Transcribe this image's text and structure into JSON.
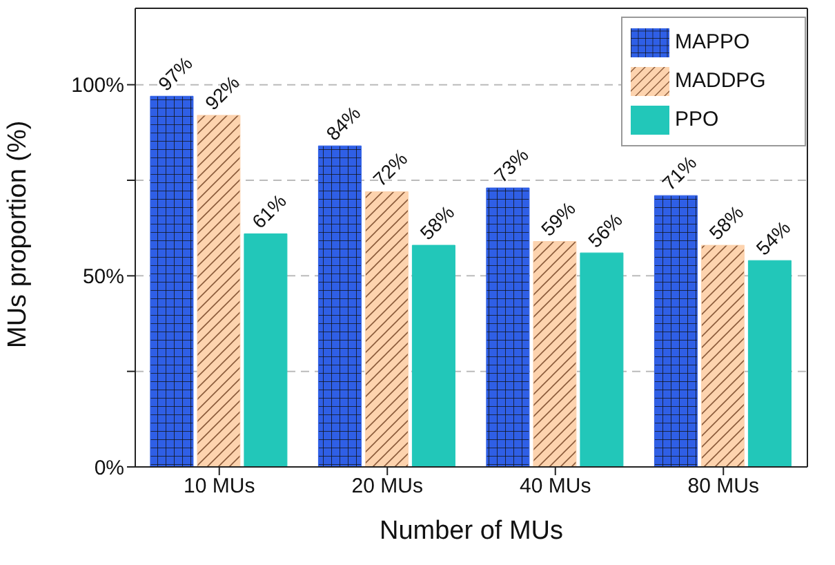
{
  "chart_data": {
    "type": "bar",
    "xlabel": "Number of MUs",
    "ylabel": "MUs proportion (%)",
    "categories": [
      "10 MUs",
      "20 MUs",
      "40 MUs",
      "80 MUs"
    ],
    "series": [
      {
        "name": "MAPPO",
        "color": "#2f5fe6",
        "values": [
          97,
          84,
          73,
          71
        ],
        "value_labels": [
          "97%",
          "84%",
          "73%",
          "71%"
        ]
      },
      {
        "name": "MADDPG",
        "color": "#fdd3ae",
        "values": [
          92,
          72,
          59,
          58
        ],
        "value_labels": [
          "92%",
          "72%",
          "59%",
          "58%"
        ]
      },
      {
        "name": "PPO",
        "color": "#22c7b9",
        "values": [
          61,
          58,
          56,
          54
        ],
        "value_labels": [
          "61%",
          "58%",
          "56%",
          "54%"
        ]
      }
    ],
    "ylim": [
      0,
      120
    ],
    "yticks": [
      {
        "value": 0,
        "label": "0%"
      },
      {
        "value": 25,
        "label": null
      },
      {
        "value": 50,
        "label": "50%"
      },
      {
        "value": 75,
        "label": null
      },
      {
        "value": 100,
        "label": "100%"
      }
    ],
    "grid": "y",
    "legend": "top right"
  }
}
